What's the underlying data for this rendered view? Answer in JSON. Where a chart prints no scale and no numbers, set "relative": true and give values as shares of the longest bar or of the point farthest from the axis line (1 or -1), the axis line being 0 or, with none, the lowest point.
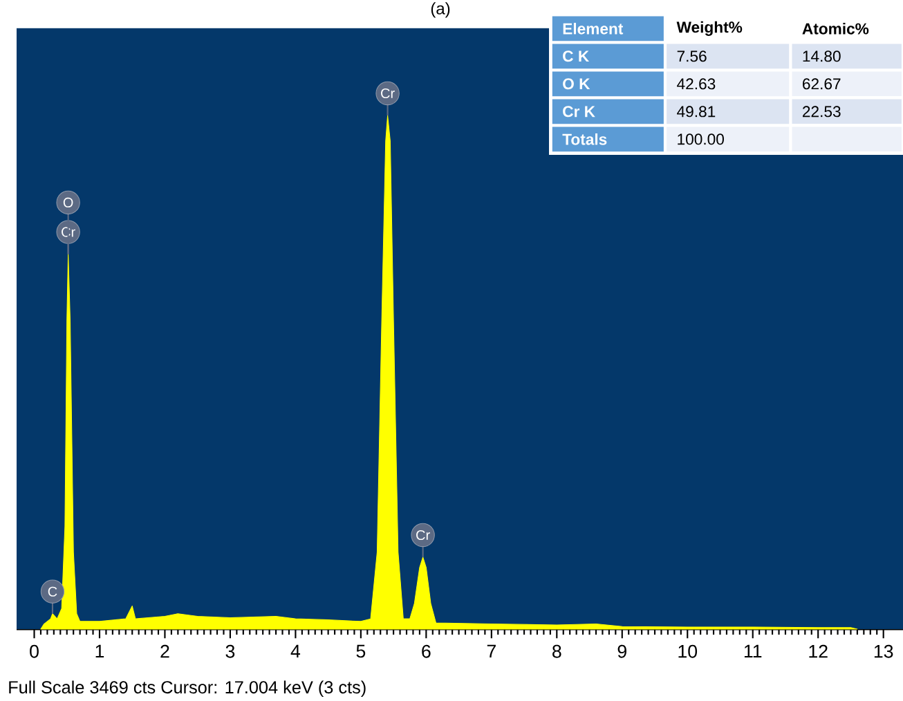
{
  "chart_data": {
    "type": "area",
    "title": "(a)",
    "relative": true,
    "color": "#ffff00",
    "x": [
      0.1,
      0.15,
      0.25,
      0.28,
      0.35,
      0.42,
      0.47,
      0.5,
      0.52,
      0.55,
      0.6,
      0.65,
      0.7,
      1.0,
      1.4,
      1.5,
      1.55,
      2.0,
      2.2,
      2.5,
      3.0,
      3.7,
      4.0,
      4.5,
      5.0,
      5.15,
      5.25,
      5.32,
      5.38,
      5.41,
      5.45,
      5.5,
      5.57,
      5.65,
      5.75,
      5.82,
      5.9,
      5.95,
      6.0,
      6.07,
      6.15,
      7.0,
      8.0,
      8.6,
      9.0,
      10.0,
      11.0,
      12.0,
      12.5,
      12.6
    ],
    "values": [
      0,
      0.01,
      0.02,
      0.03,
      0.02,
      0.04,
      0.2,
      0.6,
      0.73,
      0.6,
      0.15,
      0.03,
      0.015,
      0.015,
      0.02,
      0.045,
      0.02,
      0.025,
      0.03,
      0.025,
      0.022,
      0.025,
      0.02,
      0.018,
      0.015,
      0.02,
      0.15,
      0.6,
      0.95,
      1,
      0.95,
      0.6,
      0.15,
      0.02,
      0.02,
      0.05,
      0.12,
      0.14,
      0.12,
      0.05,
      0.012,
      0.01,
      0.008,
      0.01,
      0.005,
      0.004,
      0.004,
      0.003,
      0.003,
      0
    ],
    "xlim": [
      -0.27,
      13.3
    ],
    "xticks": [
      0,
      1,
      2,
      3,
      4,
      5,
      6,
      7,
      8,
      9,
      10,
      11,
      12,
      13
    ],
    "annotations": [
      "Full Scale 3469 cts  Cursor: 17.004 keV (3 cts)",
      "Element",
      "Weight%",
      "Atomic%",
      "C K",
      "7.56",
      "14.80",
      "O K",
      "42.63",
      "62.67",
      "Cr K",
      "49.81",
      "22.53",
      "Totals",
      "100.00",
      {
        "text": "C",
        "x": 0.28,
        "y": 0.03
      },
      {
        "text": "Cr",
        "x": 0.52,
        "y": 0.73
      },
      {
        "text": "O",
        "x": 0.52,
        "y": 0.73
      },
      {
        "text": "Cr",
        "x": 5.41,
        "y": 1
      },
      {
        "text": "Cr",
        "x": 5.95,
        "y": 0.14
      }
    ]
  }
}
